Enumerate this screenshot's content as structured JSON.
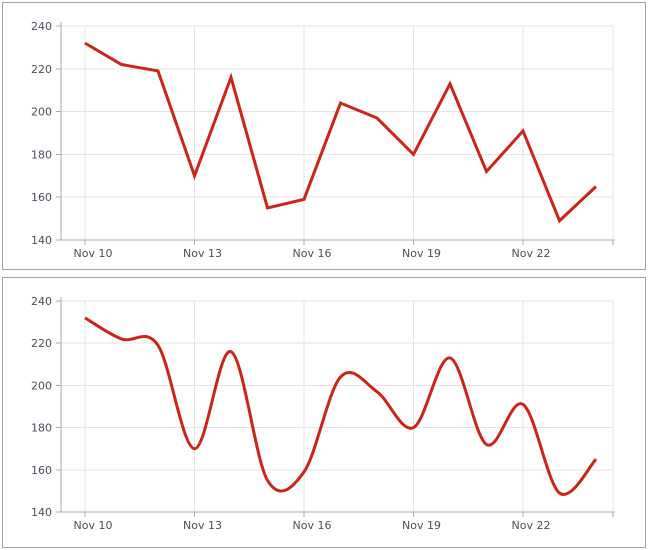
{
  "page": {
    "background": "#ffffff",
    "panel_border_color": "#a2a2a2"
  },
  "style": {
    "grid_color": "#e4e4e4",
    "axis_color": "#a8a8a8",
    "tick_color": "#a8a8a8",
    "label_color": "#4a4f5a",
    "label_font_size": 11
  },
  "chart_data": [
    {
      "type": "line",
      "title": "",
      "xlabel": "",
      "ylabel": "",
      "x": [
        "Nov 10",
        "Nov 11",
        "Nov 12",
        "Nov 13",
        "Nov 14",
        "Nov 15",
        "Nov 16",
        "Nov 17",
        "Nov 18",
        "Nov 19",
        "Nov 20",
        "Nov 21",
        "Nov 22",
        "Nov 23",
        "Nov 24"
      ],
      "values": [
        232,
        222,
        219,
        170,
        216,
        155,
        159,
        204,
        197,
        180,
        213,
        172,
        191,
        149,
        165
      ],
      "xtick_labels": [
        "Nov 10",
        "Nov 13",
        "Nov 16",
        "Nov 19",
        "Nov 22"
      ],
      "xtick_indices": [
        0,
        3,
        6,
        9,
        12
      ],
      "ytick_labels": [
        "140",
        "160",
        "180",
        "200",
        "220",
        "240"
      ],
      "yticks": [
        140,
        160,
        180,
        200,
        220,
        240
      ],
      "ylim": [
        140,
        240
      ],
      "grid": true,
      "legend": "none",
      "line_color": "#cc2418",
      "smoothed": false
    },
    {
      "type": "line",
      "title": "",
      "xlabel": "",
      "ylabel": "",
      "x": [
        "Nov 10",
        "Nov 11",
        "Nov 12",
        "Nov 13",
        "Nov 14",
        "Nov 15",
        "Nov 16",
        "Nov 17",
        "Nov 18",
        "Nov 19",
        "Nov 20",
        "Nov 21",
        "Nov 22",
        "Nov 23",
        "Nov 24"
      ],
      "values": [
        232,
        222,
        219,
        170,
        216,
        155,
        159,
        204,
        197,
        180,
        213,
        172,
        191,
        149,
        165
      ],
      "xtick_labels": [
        "Nov 10",
        "Nov 13",
        "Nov 16",
        "Nov 19",
        "Nov 22"
      ],
      "xtick_indices": [
        0,
        3,
        6,
        9,
        12
      ],
      "ytick_labels": [
        "140",
        "160",
        "180",
        "200",
        "220",
        "240"
      ],
      "yticks": [
        140,
        160,
        180,
        200,
        220,
        240
      ],
      "ylim": [
        140,
        240
      ],
      "grid": true,
      "legend": "none",
      "line_color": "#cc2418",
      "smoothed": true
    }
  ]
}
